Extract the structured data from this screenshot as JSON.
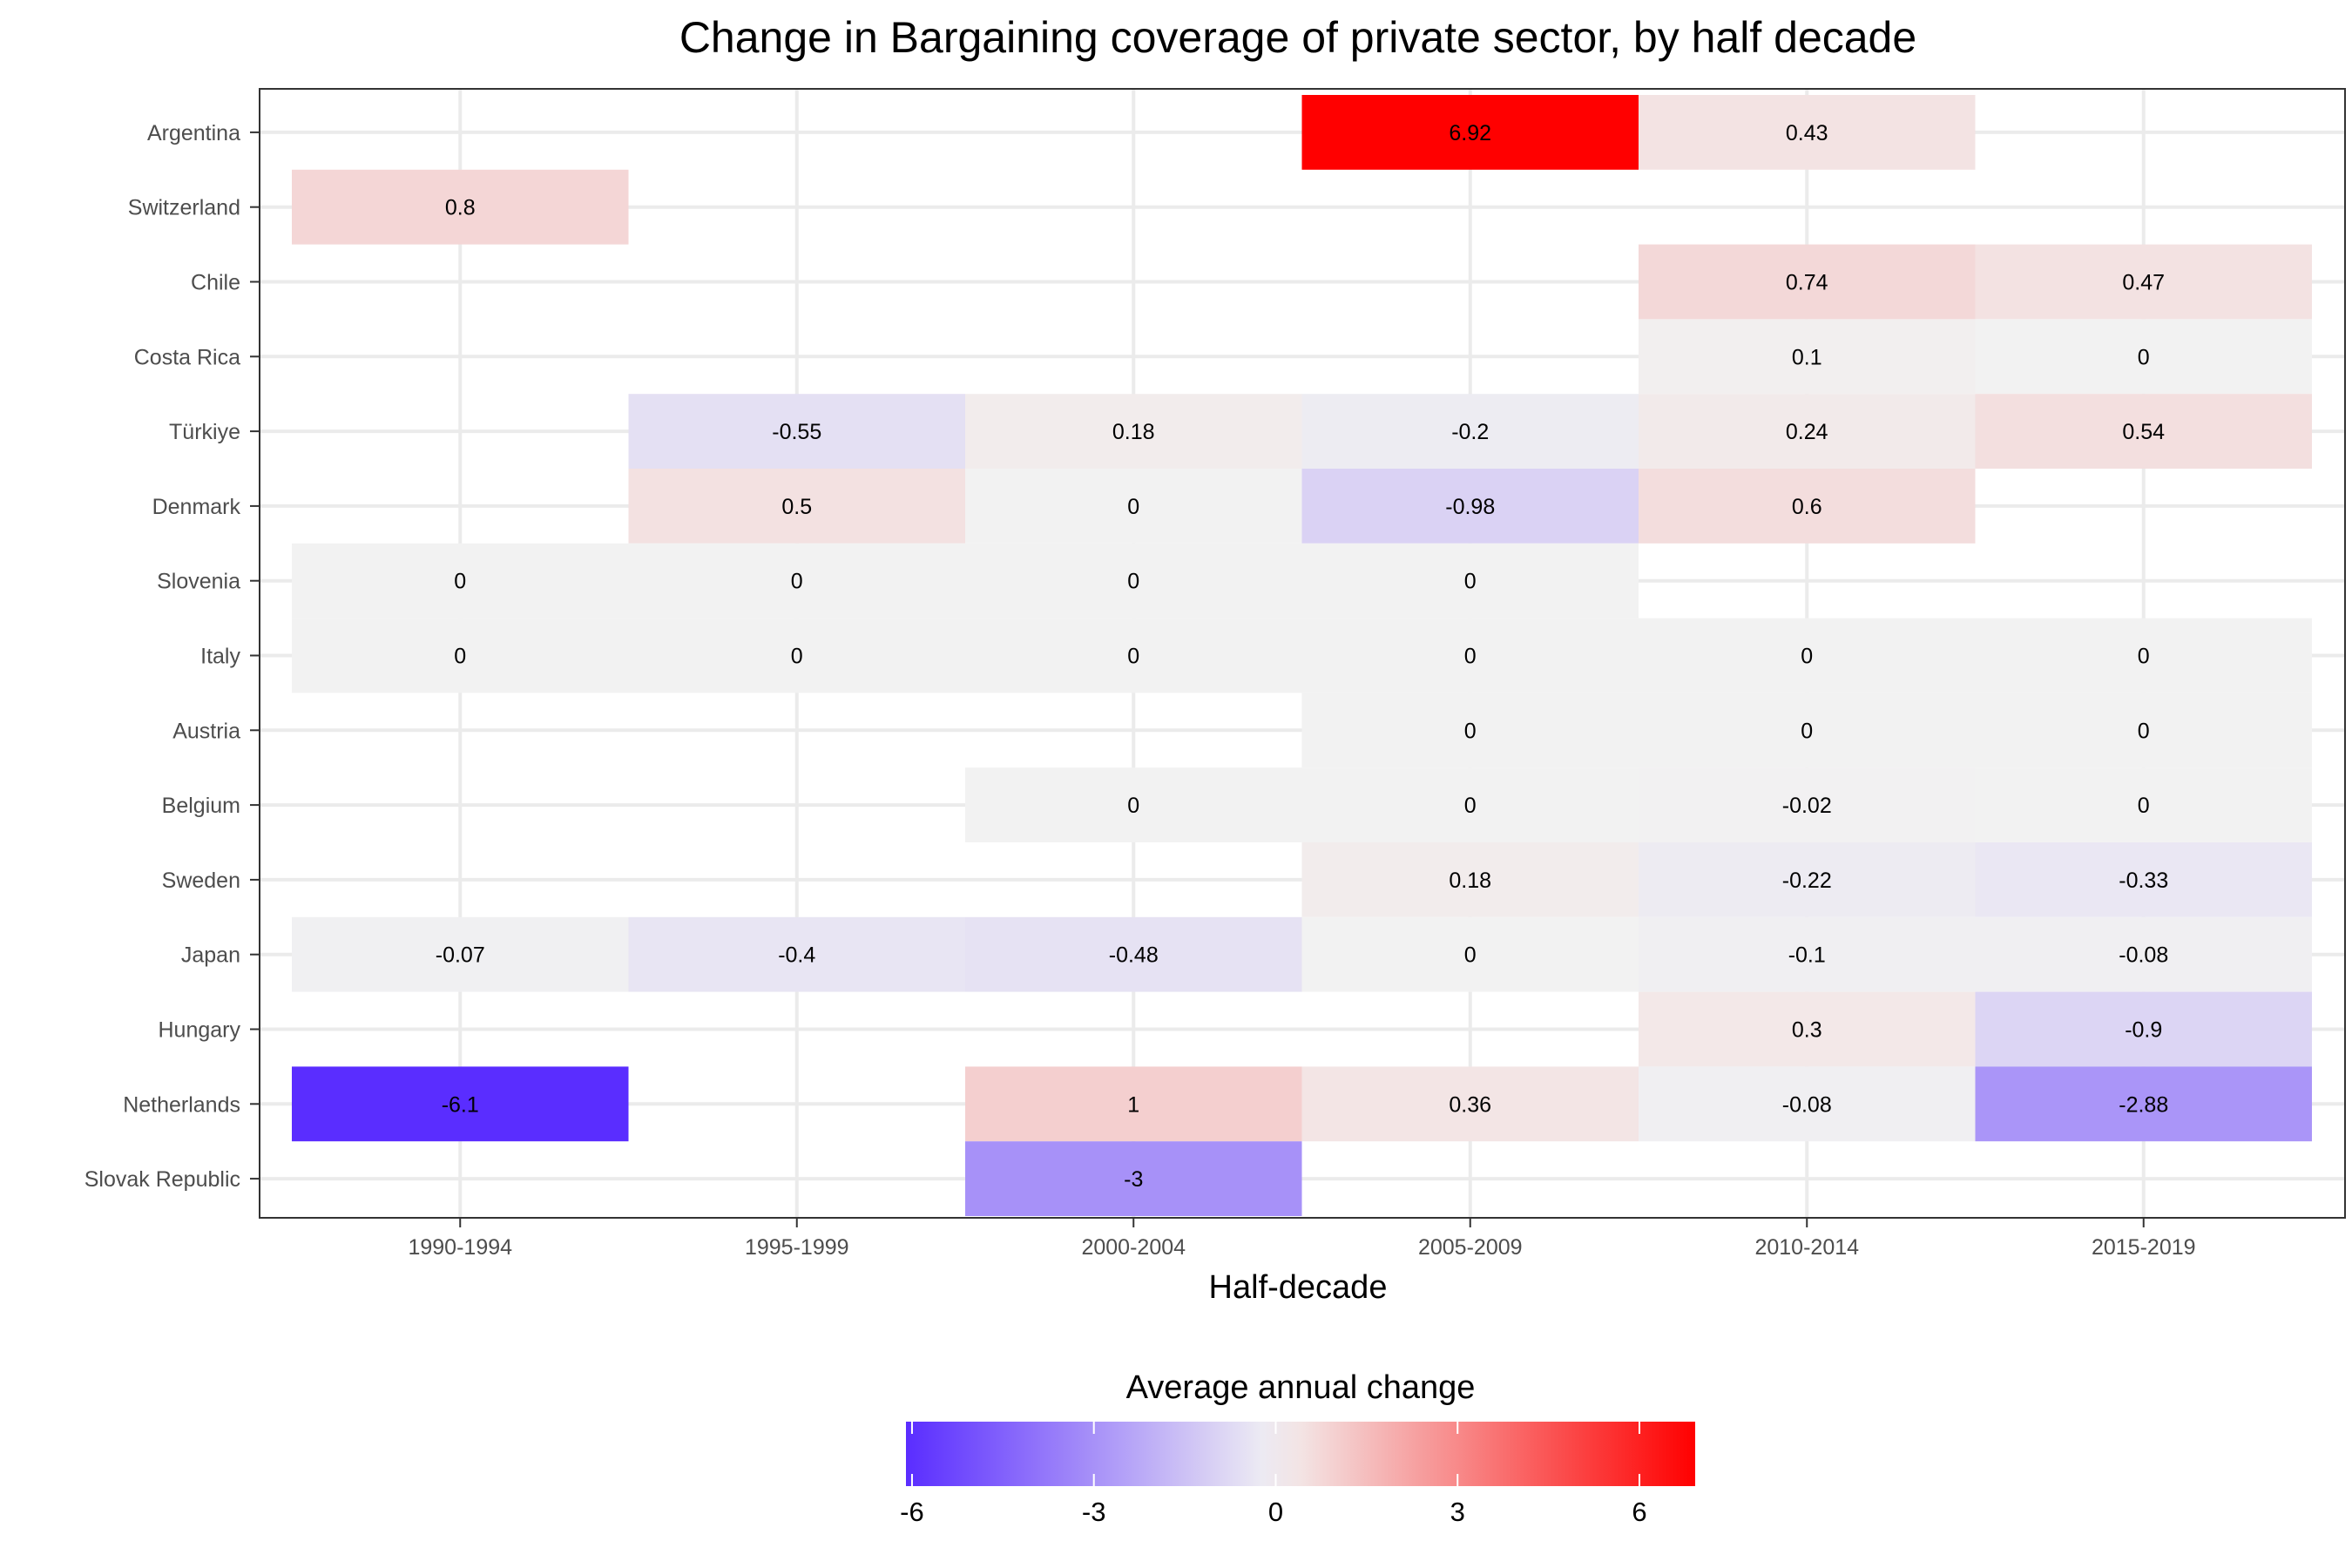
{
  "chart_data": {
    "type": "heatmap",
    "title": "Change in Bargaining coverage of private sector, by half decade",
    "xlabel": "Half-decade",
    "ylabel": "",
    "x_categories": [
      "1990-1994",
      "1995-1999",
      "2000-2004",
      "2005-2009",
      "2010-2014",
      "2015-2019"
    ],
    "y_categories": [
      "Argentina",
      "Switzerland",
      "Chile",
      "Costa Rica",
      "Türkiye",
      "Denmark",
      "Slovenia",
      "Italy",
      "Austria",
      "Belgium",
      "Sweden",
      "Japan",
      "Hungary",
      "Netherlands",
      "Slovak Republic"
    ],
    "cells": [
      {
        "y": "Argentina",
        "x": "2005-2009",
        "value": 6.92,
        "label": "6.92"
      },
      {
        "y": "Argentina",
        "x": "2010-2014",
        "value": 0.43,
        "label": "0.43"
      },
      {
        "y": "Switzerland",
        "x": "1990-1994",
        "value": 0.8,
        "label": "0.8"
      },
      {
        "y": "Chile",
        "x": "2010-2014",
        "value": 0.74,
        "label": "0.74"
      },
      {
        "y": "Chile",
        "x": "2015-2019",
        "value": 0.47,
        "label": "0.47"
      },
      {
        "y": "Costa Rica",
        "x": "2010-2014",
        "value": 0.1,
        "label": "0.1"
      },
      {
        "y": "Costa Rica",
        "x": "2015-2019",
        "value": 0,
        "label": "0"
      },
      {
        "y": "Türkiye",
        "x": "1995-1999",
        "value": -0.55,
        "label": "-0.55"
      },
      {
        "y": "Türkiye",
        "x": "2000-2004",
        "value": 0.18,
        "label": "0.18"
      },
      {
        "y": "Türkiye",
        "x": "2005-2009",
        "value": -0.2,
        "label": "-0.2"
      },
      {
        "y": "Türkiye",
        "x": "2010-2014",
        "value": 0.24,
        "label": "0.24"
      },
      {
        "y": "Türkiye",
        "x": "2015-2019",
        "value": 0.54,
        "label": "0.54"
      },
      {
        "y": "Denmark",
        "x": "1995-1999",
        "value": 0.5,
        "label": "0.5"
      },
      {
        "y": "Denmark",
        "x": "2000-2004",
        "value": 0,
        "label": "0"
      },
      {
        "y": "Denmark",
        "x": "2005-2009",
        "value": -0.98,
        "label": "-0.98"
      },
      {
        "y": "Denmark",
        "x": "2010-2014",
        "value": 0.6,
        "label": "0.6"
      },
      {
        "y": "Slovenia",
        "x": "1990-1994",
        "value": 0,
        "label": "0"
      },
      {
        "y": "Slovenia",
        "x": "1995-1999",
        "value": 0,
        "label": "0"
      },
      {
        "y": "Slovenia",
        "x": "2000-2004",
        "value": 0,
        "label": "0"
      },
      {
        "y": "Slovenia",
        "x": "2005-2009",
        "value": 0,
        "label": "0"
      },
      {
        "y": "Italy",
        "x": "1990-1994",
        "value": 0,
        "label": "0"
      },
      {
        "y": "Italy",
        "x": "1995-1999",
        "value": 0,
        "label": "0"
      },
      {
        "y": "Italy",
        "x": "2000-2004",
        "value": 0,
        "label": "0"
      },
      {
        "y": "Italy",
        "x": "2005-2009",
        "value": 0,
        "label": "0"
      },
      {
        "y": "Italy",
        "x": "2010-2014",
        "value": 0,
        "label": "0"
      },
      {
        "y": "Italy",
        "x": "2015-2019",
        "value": 0,
        "label": "0"
      },
      {
        "y": "Austria",
        "x": "2005-2009",
        "value": 0,
        "label": "0"
      },
      {
        "y": "Austria",
        "x": "2010-2014",
        "value": 0,
        "label": "0"
      },
      {
        "y": "Austria",
        "x": "2015-2019",
        "value": 0,
        "label": "0"
      },
      {
        "y": "Belgium",
        "x": "2000-2004",
        "value": 0,
        "label": "0"
      },
      {
        "y": "Belgium",
        "x": "2005-2009",
        "value": 0,
        "label": "0"
      },
      {
        "y": "Belgium",
        "x": "2010-2014",
        "value": -0.02,
        "label": "-0.02"
      },
      {
        "y": "Belgium",
        "x": "2015-2019",
        "value": 0,
        "label": "0"
      },
      {
        "y": "Sweden",
        "x": "2005-2009",
        "value": 0.18,
        "label": "0.18"
      },
      {
        "y": "Sweden",
        "x": "2010-2014",
        "value": -0.22,
        "label": "-0.22"
      },
      {
        "y": "Sweden",
        "x": "2015-2019",
        "value": -0.33,
        "label": "-0.33"
      },
      {
        "y": "Japan",
        "x": "1990-1994",
        "value": -0.07,
        "label": "-0.07"
      },
      {
        "y": "Japan",
        "x": "1995-1999",
        "value": -0.4,
        "label": "-0.4"
      },
      {
        "y": "Japan",
        "x": "2000-2004",
        "value": -0.48,
        "label": "-0.48"
      },
      {
        "y": "Japan",
        "x": "2005-2009",
        "value": 0,
        "label": "0"
      },
      {
        "y": "Japan",
        "x": "2010-2014",
        "value": -0.1,
        "label": "-0.1"
      },
      {
        "y": "Japan",
        "x": "2015-2019",
        "value": -0.08,
        "label": "-0.08"
      },
      {
        "y": "Hungary",
        "x": "2010-2014",
        "value": 0.3,
        "label": "0.3"
      },
      {
        "y": "Hungary",
        "x": "2015-2019",
        "value": -0.9,
        "label": "-0.9"
      },
      {
        "y": "Netherlands",
        "x": "1990-1994",
        "value": -6.1,
        "label": "-6.1"
      },
      {
        "y": "Netherlands",
        "x": "2000-2004",
        "value": 1,
        "label": "1"
      },
      {
        "y": "Netherlands",
        "x": "2005-2009",
        "value": 0.36,
        "label": "0.36"
      },
      {
        "y": "Netherlands",
        "x": "2010-2014",
        "value": -0.08,
        "label": "-0.08"
      },
      {
        "y": "Netherlands",
        "x": "2015-2019",
        "value": -2.88,
        "label": "-2.88"
      },
      {
        "y": "Slovak Republic",
        "x": "2000-2004",
        "value": -3,
        "label": "-3"
      }
    ],
    "color_scale": {
      "title": "Average annual change",
      "min": -6.1,
      "mid": 0,
      "max": 6.92,
      "low_color": "#5a2dff",
      "mid_color": "#f2f2f2",
      "high_color": "#ff0000",
      "ticks": [
        -6,
        -3,
        0,
        3,
        6
      ],
      "tick_labels": [
        "-6",
        "-3",
        "0",
        "3",
        "6"
      ]
    },
    "grid": true,
    "legend_position": "bottom"
  }
}
